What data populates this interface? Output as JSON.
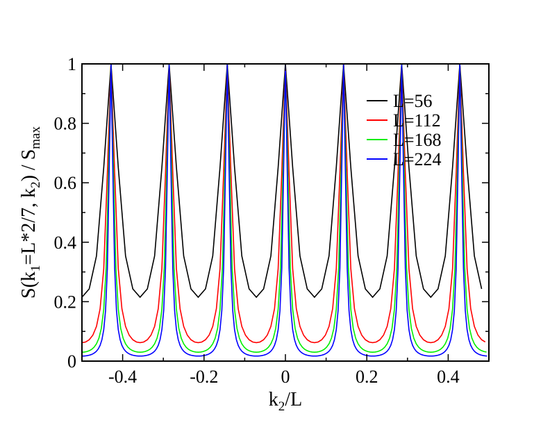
{
  "chart_data": {
    "type": "line",
    "title": "",
    "xlabel": {
      "base": "k",
      "sub": "2",
      "tail": "/L"
    },
    "ylabel": {
      "parts": [
        {
          "t": "S(k",
          "sub": false
        },
        {
          "t": "1",
          "sub": true
        },
        {
          "t": "=L*2/7, k",
          "sub": false
        },
        {
          "t": "2",
          "sub": true
        },
        {
          "t": ") / S",
          "sub": false
        },
        {
          "t": "max",
          "sub": true
        }
      ]
    },
    "xlim": [
      -0.5,
      0.5
    ],
    "ylim": [
      0,
      1
    ],
    "xticks": [
      -0.4,
      -0.2,
      0,
      0.2,
      0.4
    ],
    "xtick_labels": [
      "-0.4",
      "-0.2",
      "0",
      "0.2",
      "0.4"
    ],
    "yticks": [
      0,
      0.2,
      0.4,
      0.6,
      0.8,
      1
    ],
    "ytick_labels": [
      "0",
      "0.2",
      "0.4",
      "0.6",
      "0.8",
      "1"
    ],
    "grid": false,
    "legend_position": "top-right",
    "peak_positions": [
      -0.4286,
      -0.2857,
      -0.1429,
      0,
      0.1429,
      0.2857,
      0.4286
    ],
    "series": [
      {
        "name": "L=56",
        "L": 56,
        "color": "#000000",
        "x_range": [
          -0.5,
          0.4821
        ],
        "min_value": 0.215,
        "peak_value": 1.0
      },
      {
        "name": "L=112",
        "L": 112,
        "color": "#ff0000",
        "x_range": [
          -0.5,
          0.4911
        ],
        "min_value": 0.062,
        "peak_value": 1.0
      },
      {
        "name": "L=168",
        "L": 168,
        "color": "#00ee00",
        "x_range": [
          -0.5,
          0.494
        ],
        "min_value": 0.03,
        "peak_value": 1.0
      },
      {
        "name": "L=224",
        "L": 224,
        "color": "#0000ff",
        "x_range": [
          -0.5,
          0.4955
        ],
        "min_value": 0.017,
        "peak_value": 1.0
      }
    ]
  }
}
